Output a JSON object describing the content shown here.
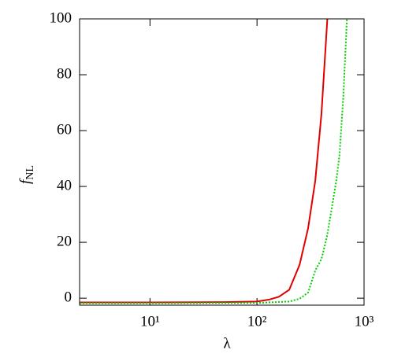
{
  "chart_data": {
    "type": "line",
    "x_label": "λ",
    "y_label": "f",
    "y_label_sub": "NL",
    "log_x": true,
    "xlim": [
      2.2,
      1000
    ],
    "xticks": [
      {
        "value": 10,
        "label": "10¹"
      },
      {
        "value": 100,
        "label": "10²"
      },
      {
        "value": 1000,
        "label": "10³"
      }
    ],
    "ylim": [
      -2.5,
      100
    ],
    "yticks": [
      0,
      20,
      40,
      60,
      80,
      100
    ],
    "series": [
      {
        "color": "#e00000",
        "dash": "solid",
        "x": [
          2.2,
          10,
          50,
          100,
          130,
          160,
          200,
          250,
          300,
          350,
          400,
          454
        ],
        "values": [
          -1.5,
          -1.5,
          -1.4,
          -1.2,
          -0.5,
          0.5,
          3,
          12,
          25,
          42,
          66,
          100
        ]
      },
      {
        "color": "#00d000",
        "dash": "dotted",
        "x": [
          2.2,
          10,
          100,
          200,
          250,
          300,
          351,
          400,
          450,
          493,
          550,
          589,
          640,
          692
        ],
        "values": [
          -1.8,
          -1.8,
          -1.7,
          -1.2,
          -0.2,
          2,
          10,
          14,
          22,
          31,
          42,
          51,
          72,
          100
        ]
      }
    ]
  }
}
